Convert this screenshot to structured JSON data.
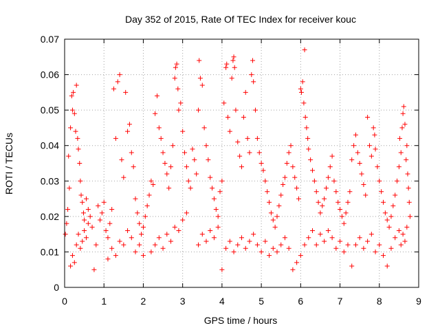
{
  "chart_data": {
    "type": "scatter",
    "title": "Day 352 of 2015, Rate Of TEC Index for receiver kouc",
    "xlabel": "GPS time / hours",
    "ylabel": "ROTI / TECUs",
    "xlim": [
      0,
      9
    ],
    "ylim": [
      0,
      0.07
    ],
    "xticks": [
      0,
      1,
      2,
      3,
      4,
      5,
      6,
      7,
      8,
      9
    ],
    "xtick_labels": [
      "0",
      "1",
      "2",
      "3",
      "4",
      "5",
      "6",
      "7",
      "8",
      "9"
    ],
    "yticks": [
      0,
      0.01,
      0.02,
      0.03,
      0.04,
      0.05,
      0.06,
      0.07
    ],
    "ytick_labels": [
      "0",
      "0.01",
      "0.02",
      "0.03",
      "0.04",
      "0.05",
      "0.06",
      "0.07"
    ],
    "grid": true,
    "marker": "plus",
    "color": "#ff0000",
    "series": [
      {
        "name": "ROTI",
        "points": [
          [
            0.02,
            0.015
          ],
          [
            0.05,
            0.018
          ],
          [
            0.08,
            0.022
          ],
          [
            0.1,
            0.037
          ],
          [
            0.12,
            0.028
          ],
          [
            0.15,
            0.045
          ],
          [
            0.18,
            0.054
          ],
          [
            0.2,
            0.05
          ],
          [
            0.22,
            0.055
          ],
          [
            0.25,
            0.049
          ],
          [
            0.28,
            0.044
          ],
          [
            0.3,
            0.057
          ],
          [
            0.33,
            0.042
          ],
          [
            0.35,
            0.039
          ],
          [
            0.38,
            0.035
          ],
          [
            0.4,
            0.03
          ],
          [
            0.42,
            0.026
          ],
          [
            0.45,
            0.024
          ],
          [
            0.48,
            0.021
          ],
          [
            0.5,
            0.019
          ],
          [
            0.15,
            0.006
          ],
          [
            0.2,
            0.009
          ],
          [
            0.25,
            0.007
          ],
          [
            0.3,
            0.012
          ],
          [
            0.35,
            0.015
          ],
          [
            0.4,
            0.011
          ],
          [
            0.45,
            0.013
          ],
          [
            0.5,
            0.016
          ],
          [
            0.55,
            0.014
          ],
          [
            0.6,
            0.018
          ],
          [
            0.55,
            0.025
          ],
          [
            0.6,
            0.022
          ],
          [
            0.65,
            0.02
          ],
          [
            0.7,
            0.017
          ],
          [
            0.75,
            0.005
          ],
          [
            0.8,
            0.012
          ],
          [
            0.85,
            0.023
          ],
          [
            0.9,
            0.019
          ],
          [
            0.95,
            0.021
          ],
          [
            1.0,
            0.024
          ],
          [
            1.05,
            0.016
          ],
          [
            1.1,
            0.014
          ],
          [
            1.15,
            0.018
          ],
          [
            1.2,
            0.022
          ],
          [
            1.25,
            0.056
          ],
          [
            1.3,
            0.042
          ],
          [
            1.35,
            0.058
          ],
          [
            1.4,
            0.06
          ],
          [
            1.45,
            0.036
          ],
          [
            1.5,
            0.031
          ],
          [
            1.55,
            0.055
          ],
          [
            1.6,
            0.044
          ],
          [
            1.65,
            0.046
          ],
          [
            1.7,
            0.038
          ],
          [
            1.75,
            0.034
          ],
          [
            1.8,
            0.025
          ],
          [
            1.85,
            0.021
          ],
          [
            1.9,
            0.018
          ],
          [
            1.95,
            0.015
          ],
          [
            2.0,
            0.017
          ],
          [
            1.1,
            0.008
          ],
          [
            1.2,
            0.011
          ],
          [
            1.3,
            0.009
          ],
          [
            1.4,
            0.013
          ],
          [
            1.5,
            0.012
          ],
          [
            1.6,
            0.016
          ],
          [
            1.7,
            0.014
          ],
          [
            1.8,
            0.01
          ],
          [
            1.9,
            0.012
          ],
          [
            2.0,
            0.009
          ],
          [
            2.05,
            0.02
          ],
          [
            2.1,
            0.023
          ],
          [
            2.15,
            0.026
          ],
          [
            2.2,
            0.03
          ],
          [
            2.25,
            0.029
          ],
          [
            2.3,
            0.049
          ],
          [
            2.35,
            0.054
          ],
          [
            2.4,
            0.045
          ],
          [
            2.45,
            0.042
          ],
          [
            2.5,
            0.038
          ],
          [
            2.55,
            0.035
          ],
          [
            2.6,
            0.032
          ],
          [
            2.65,
            0.028
          ],
          [
            2.7,
            0.034
          ],
          [
            2.75,
            0.04
          ],
          [
            2.8,
            0.059
          ],
          [
            2.82,
            0.062
          ],
          [
            2.85,
            0.063
          ],
          [
            2.88,
            0.056
          ],
          [
            2.9,
            0.05
          ],
          [
            2.95,
            0.052
          ],
          [
            3.0,
            0.044
          ],
          [
            3.05,
            0.038
          ],
          [
            3.1,
            0.034
          ],
          [
            3.15,
            0.03
          ],
          [
            3.2,
            0.028
          ],
          [
            3.25,
            0.039
          ],
          [
            3.3,
            0.036
          ],
          [
            3.35,
            0.032
          ],
          [
            3.4,
            0.05
          ],
          [
            2.2,
            0.01
          ],
          [
            2.3,
            0.012
          ],
          [
            2.4,
            0.014
          ],
          [
            2.5,
            0.011
          ],
          [
            2.6,
            0.015
          ],
          [
            2.7,
            0.013
          ],
          [
            2.8,
            0.017
          ],
          [
            2.9,
            0.016
          ],
          [
            3.0,
            0.019
          ],
          [
            3.1,
            0.021
          ],
          [
            3.42,
            0.064
          ],
          [
            3.45,
            0.059
          ],
          [
            3.5,
            0.057
          ],
          [
            3.55,
            0.045
          ],
          [
            3.6,
            0.04
          ],
          [
            3.65,
            0.036
          ],
          [
            3.7,
            0.031
          ],
          [
            3.75,
            0.028
          ],
          [
            3.8,
            0.025
          ],
          [
            3.85,
            0.022
          ],
          [
            3.9,
            0.02
          ],
          [
            3.95,
            0.027
          ],
          [
            4.0,
            0.03
          ],
          [
            4.05,
            0.052
          ],
          [
            4.1,
            0.062
          ],
          [
            4.12,
            0.063
          ],
          [
            4.15,
            0.048
          ],
          [
            4.2,
            0.044
          ],
          [
            4.25,
            0.059
          ],
          [
            4.28,
            0.064
          ],
          [
            4.3,
            0.065
          ],
          [
            4.32,
            0.062
          ],
          [
            4.35,
            0.05
          ],
          [
            4.4,
            0.041
          ],
          [
            4.45,
            0.037
          ],
          [
            4.5,
            0.034
          ],
          [
            4.55,
            0.048
          ],
          [
            4.6,
            0.055
          ],
          [
            4.65,
            0.042
          ],
          [
            4.7,
            0.038
          ],
          [
            3.4,
            0.012
          ],
          [
            3.5,
            0.015
          ],
          [
            3.6,
            0.013
          ],
          [
            3.7,
            0.016
          ],
          [
            3.8,
            0.014
          ],
          [
            3.9,
            0.017
          ],
          [
            4.0,
            0.005
          ],
          [
            4.1,
            0.011
          ],
          [
            4.2,
            0.013
          ],
          [
            4.3,
            0.01
          ],
          [
            4.75,
            0.06
          ],
          [
            4.78,
            0.064
          ],
          [
            4.8,
            0.058
          ],
          [
            4.85,
            0.05
          ],
          [
            4.9,
            0.042
          ],
          [
            4.95,
            0.038
          ],
          [
            5.0,
            0.035
          ],
          [
            5.05,
            0.033
          ],
          [
            5.1,
            0.03
          ],
          [
            5.15,
            0.027
          ],
          [
            5.2,
            0.024
          ],
          [
            5.25,
            0.021
          ],
          [
            5.3,
            0.019
          ],
          [
            5.35,
            0.017
          ],
          [
            5.4,
            0.02
          ],
          [
            5.45,
            0.023
          ],
          [
            5.5,
            0.026
          ],
          [
            5.55,
            0.029
          ],
          [
            5.6,
            0.031
          ],
          [
            5.65,
            0.035
          ],
          [
            4.4,
            0.012
          ],
          [
            4.5,
            0.014
          ],
          [
            4.6,
            0.011
          ],
          [
            4.7,
            0.013
          ],
          [
            4.8,
            0.015
          ],
          [
            4.9,
            0.012
          ],
          [
            5.0,
            0.01
          ],
          [
            5.1,
            0.013
          ],
          [
            5.2,
            0.009
          ],
          [
            5.3,
            0.011
          ],
          [
            5.7,
            0.038
          ],
          [
            5.75,
            0.04
          ],
          [
            5.8,
            0.034
          ],
          [
            5.85,
            0.031
          ],
          [
            5.9,
            0.028
          ],
          [
            5.95,
            0.025
          ],
          [
            6.0,
            0.056
          ],
          [
            6.02,
            0.055
          ],
          [
            6.05,
            0.058
          ],
          [
            6.08,
            0.052
          ],
          [
            6.1,
            0.067
          ],
          [
            6.12,
            0.048
          ],
          [
            6.15,
            0.045
          ],
          [
            6.18,
            0.042
          ],
          [
            6.2,
            0.039
          ],
          [
            6.25,
            0.036
          ],
          [
            6.3,
            0.033
          ],
          [
            6.35,
            0.03
          ],
          [
            6.4,
            0.027
          ],
          [
            6.45,
            0.024
          ],
          [
            5.4,
            0.01
          ],
          [
            5.5,
            0.012
          ],
          [
            5.6,
            0.014
          ],
          [
            5.7,
            0.011
          ],
          [
            5.8,
            0.005
          ],
          [
            5.9,
            0.007
          ],
          [
            6.0,
            0.009
          ],
          [
            6.1,
            0.012
          ],
          [
            6.2,
            0.014
          ],
          [
            6.3,
            0.016
          ],
          [
            6.5,
            0.021
          ],
          [
            6.55,
            0.023
          ],
          [
            6.6,
            0.025
          ],
          [
            6.65,
            0.028
          ],
          [
            6.7,
            0.031
          ],
          [
            6.75,
            0.034
          ],
          [
            6.8,
            0.037
          ],
          [
            6.85,
            0.03
          ],
          [
            6.9,
            0.027
          ],
          [
            6.95,
            0.024
          ],
          [
            7.0,
            0.022
          ],
          [
            7.05,
            0.02
          ],
          [
            7.1,
            0.018
          ],
          [
            7.15,
            0.021
          ],
          [
            7.2,
            0.024
          ],
          [
            7.25,
            0.027
          ],
          [
            7.3,
            0.036
          ],
          [
            7.35,
            0.04
          ],
          [
            7.4,
            0.043
          ],
          [
            7.45,
            0.038
          ],
          [
            6.4,
            0.012
          ],
          [
            6.5,
            0.015
          ],
          [
            6.6,
            0.013
          ],
          [
            6.7,
            0.016
          ],
          [
            6.8,
            0.014
          ],
          [
            6.9,
            0.011
          ],
          [
            7.0,
            0.013
          ],
          [
            7.1,
            0.01
          ],
          [
            7.2,
            0.012
          ],
          [
            7.3,
            0.006
          ],
          [
            7.5,
            0.035
          ],
          [
            7.55,
            0.032
          ],
          [
            7.6,
            0.029
          ],
          [
            7.65,
            0.026
          ],
          [
            7.7,
            0.048
          ],
          [
            7.75,
            0.04
          ],
          [
            7.8,
            0.037
          ],
          [
            7.85,
            0.045
          ],
          [
            7.88,
            0.043
          ],
          [
            7.9,
            0.039
          ],
          [
            7.95,
            0.034
          ],
          [
            8.0,
            0.03
          ],
          [
            8.05,
            0.027
          ],
          [
            8.1,
            0.024
          ],
          [
            8.15,
            0.021
          ],
          [
            8.2,
            0.019
          ],
          [
            8.25,
            0.017
          ],
          [
            8.3,
            0.02
          ],
          [
            8.35,
            0.023
          ],
          [
            8.4,
            0.026
          ],
          [
            7.4,
            0.012
          ],
          [
            7.5,
            0.014
          ],
          [
            7.6,
            0.011
          ],
          [
            7.7,
            0.013
          ],
          [
            7.8,
            0.015
          ],
          [
            7.9,
            0.01
          ],
          [
            8.0,
            0.012
          ],
          [
            8.1,
            0.009
          ],
          [
            8.2,
            0.006
          ],
          [
            8.3,
            0.011
          ],
          [
            8.45,
            0.03
          ],
          [
            8.5,
            0.034
          ],
          [
            8.52,
            0.042
          ],
          [
            8.55,
            0.038
          ],
          [
            8.58,
            0.045
          ],
          [
            8.6,
            0.049
          ],
          [
            8.62,
            0.051
          ],
          [
            8.65,
            0.046
          ],
          [
            8.68,
            0.036
          ],
          [
            8.7,
            0.04
          ],
          [
            8.72,
            0.032
          ],
          [
            8.74,
            0.028
          ],
          [
            8.76,
            0.024
          ],
          [
            8.78,
            0.02
          ],
          [
            8.6,
            0.015
          ],
          [
            8.65,
            0.013
          ],
          [
            8.7,
            0.017
          ],
          [
            8.4,
            0.014
          ],
          [
            8.5,
            0.016
          ],
          [
            8.55,
            0.012
          ]
        ]
      }
    ]
  }
}
